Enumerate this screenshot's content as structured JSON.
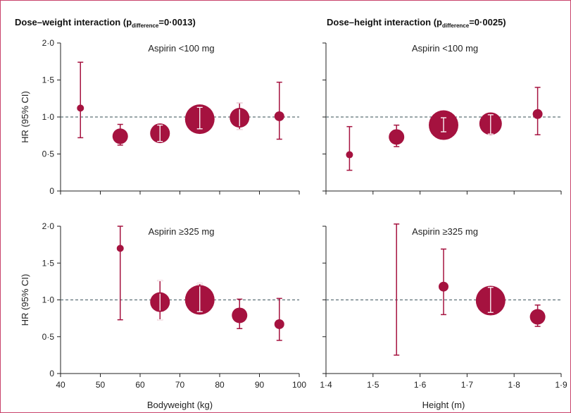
{
  "chart_data": [
    {
      "type": "scatter",
      "title": "Dose–weight interaction (pdifference=0·0013)",
      "title_main": "Dose–weight interaction (p",
      "title_sub": "difference",
      "title_end": "=0·0013)",
      "annotation": "Aspirin <100 mg",
      "ylabel": "HR (95% CI)",
      "xlabel": "",
      "xlim": [
        40,
        100
      ],
      "ylim": [
        0,
        2.0
      ],
      "reference_line": 1.0,
      "y_ticks": [
        "0",
        "0·5",
        "1·0",
        "1·5",
        "2·0"
      ],
      "x_ticks": [],
      "points": [
        {
          "x": 45,
          "y": 1.12,
          "lower": 0.72,
          "upper": 1.74,
          "size": "smallest"
        },
        {
          "x": 55,
          "y": 0.74,
          "lower": 0.62,
          "upper": 0.9,
          "size": "medium"
        },
        {
          "x": 65,
          "y": 0.78,
          "lower": 0.67,
          "upper": 0.89,
          "size": "large"
        },
        {
          "x": 75,
          "y": 0.97,
          "lower": 0.84,
          "upper": 1.13,
          "size": "largest"
        },
        {
          "x": 85,
          "y": 0.99,
          "lower": 0.83,
          "upper": 1.19,
          "size": "large"
        },
        {
          "x": 95,
          "y": 1.01,
          "lower": 0.7,
          "upper": 1.47,
          "size": "small"
        }
      ]
    },
    {
      "type": "scatter",
      "title": "Dose–height interaction (pdifference=0·0025)",
      "title_main": "Dose–height interaction (p",
      "title_sub": "difference",
      "title_end": "=0·0025)",
      "annotation": "Aspirin <100 mg",
      "ylabel": "",
      "xlabel": "",
      "xlim": [
        1.4,
        1.9
      ],
      "ylim": [
        0,
        2.0
      ],
      "reference_line": 1.0,
      "y_ticks": [],
      "x_ticks": [],
      "points": [
        {
          "x": 1.45,
          "y": 0.49,
          "lower": 0.28,
          "upper": 0.87,
          "size": "smallest"
        },
        {
          "x": 1.55,
          "y": 0.73,
          "lower": 0.6,
          "upper": 0.89,
          "size": "medium"
        },
        {
          "x": 1.65,
          "y": 0.89,
          "lower": 0.8,
          "upper": 0.99,
          "size": "largest"
        },
        {
          "x": 1.75,
          "y": 0.91,
          "lower": 0.77,
          "upper": 1.03,
          "size": "very large"
        },
        {
          "x": 1.85,
          "y": 1.04,
          "lower": 0.76,
          "upper": 1.4,
          "size": "small"
        }
      ]
    },
    {
      "type": "scatter",
      "title": "",
      "annotation": "Aspirin ≥325 mg",
      "ylabel": "HR (95% CI)",
      "xlabel": "Bodyweight (kg)",
      "xlim": [
        40,
        100
      ],
      "ylim": [
        0,
        2.0
      ],
      "reference_line": 1.0,
      "y_ticks": [
        "0",
        "0·5",
        "1·0",
        "1·5",
        "2·0"
      ],
      "x_ticks": [
        "40",
        "50",
        "60",
        "70",
        "80",
        "90",
        "100"
      ],
      "points": [
        {
          "x": 55,
          "y": 1.7,
          "lower": 0.73,
          "upper": 2.0,
          "size": "smallest"
        },
        {
          "x": 65,
          "y": 0.97,
          "lower": 0.73,
          "upper": 1.26,
          "size": "large"
        },
        {
          "x": 75,
          "y": 1.0,
          "lower": 0.84,
          "upper": 1.22,
          "size": "largest"
        },
        {
          "x": 85,
          "y": 0.79,
          "lower": 0.61,
          "upper": 1.01,
          "size": "medium"
        },
        {
          "x": 95,
          "y": 0.67,
          "lower": 0.45,
          "upper": 1.02,
          "size": "small"
        }
      ]
    },
    {
      "type": "scatter",
      "title": "",
      "annotation": "Aspirin ≥325 mg",
      "ylabel": "",
      "xlabel": "Height (m)",
      "xlim": [
        1.4,
        1.9
      ],
      "ylim": [
        0,
        2.0
      ],
      "reference_line": 1.0,
      "y_ticks": [],
      "x_ticks": [
        "1·4",
        "1·5",
        "1·6",
        "1·7",
        "1·8",
        "1·9"
      ],
      "points": [
        {
          "x": 1.55,
          "y": null,
          "lower": 0.25,
          "upper": 2.03,
          "size": "none"
        },
        {
          "x": 1.65,
          "y": 1.18,
          "lower": 0.8,
          "upper": 1.69,
          "size": "small"
        },
        {
          "x": 1.75,
          "y": 0.99,
          "lower": 0.83,
          "upper": 1.17,
          "size": "largest"
        },
        {
          "x": 1.85,
          "y": 0.77,
          "lower": 0.64,
          "upper": 0.93,
          "size": "medium"
        }
      ]
    }
  ],
  "colors": {
    "marker": "#a5123f",
    "reference_line": "#5e7076",
    "axis": "#222222",
    "frame": "#c8436b"
  }
}
